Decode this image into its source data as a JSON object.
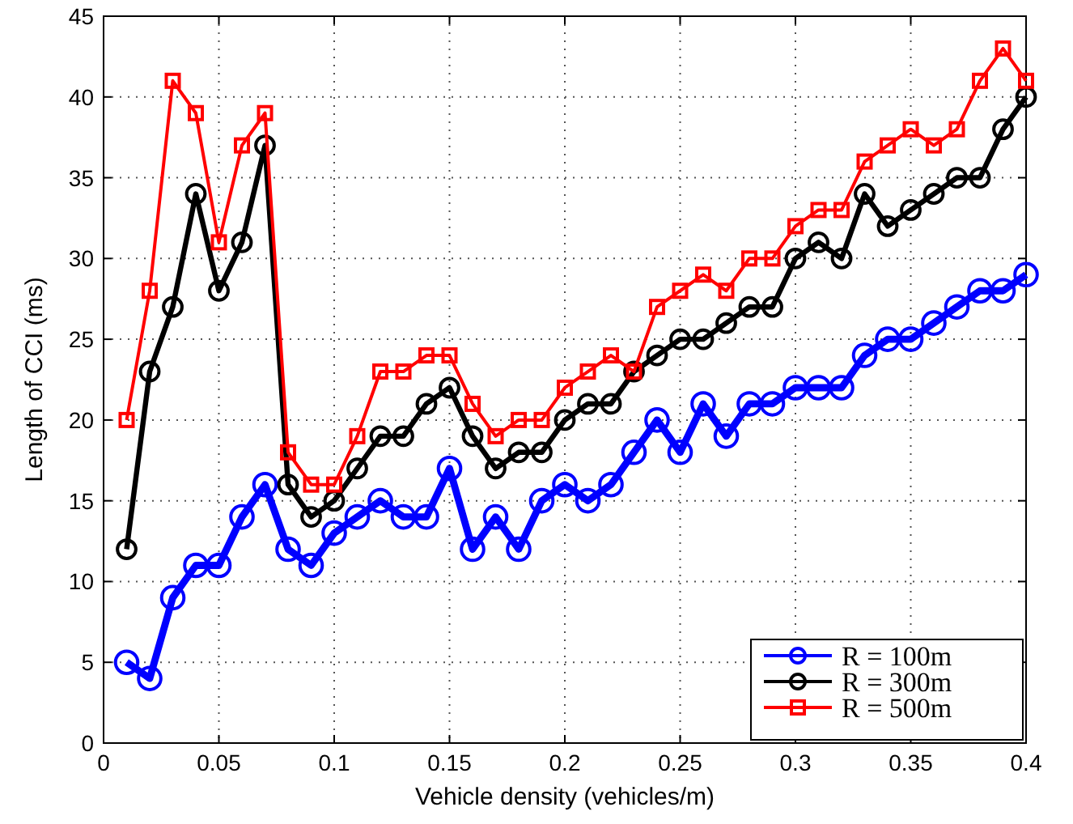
{
  "chart_data": {
    "type": "line",
    "xlabel": "Vehicle density (vehicles/m)",
    "ylabel": "Length of CCI (ms)",
    "x": [
      0.01,
      0.02,
      0.03,
      0.04,
      0.05,
      0.06,
      0.07,
      0.08,
      0.09,
      0.1,
      0.11,
      0.12,
      0.13,
      0.14,
      0.15,
      0.16,
      0.17,
      0.18,
      0.19,
      0.2,
      0.21,
      0.22,
      0.23,
      0.24,
      0.25,
      0.26,
      0.27,
      0.28,
      0.29,
      0.3,
      0.31,
      0.32,
      0.33,
      0.34,
      0.35,
      0.36,
      0.37,
      0.38,
      0.39,
      0.4
    ],
    "series": [
      {
        "name": "R = 100m",
        "color": "#0000ff",
        "marker": "circle",
        "values": [
          5,
          4,
          9,
          11,
          11,
          14,
          16,
          12,
          11,
          13,
          14,
          15,
          14,
          14,
          17,
          12,
          14,
          12,
          15,
          16,
          15,
          16,
          18,
          20,
          18,
          21,
          19,
          21,
          21,
          22,
          22,
          22,
          24,
          25,
          25,
          26,
          27,
          28,
          28,
          29
        ]
      },
      {
        "name": "R = 300m",
        "color": "#000000",
        "marker": "circle",
        "values": [
          12,
          23,
          27,
          34,
          28,
          31,
          37,
          16,
          14,
          15,
          17,
          19,
          19,
          21,
          22,
          19,
          17,
          18,
          18,
          20,
          21,
          21,
          23,
          24,
          25,
          25,
          26,
          27,
          27,
          30,
          31,
          30,
          34,
          32,
          33,
          34,
          35,
          35,
          38,
          40
        ]
      },
      {
        "name": "R = 500m",
        "color": "#ff0000",
        "marker": "square",
        "values": [
          20,
          28,
          41,
          39,
          31,
          37,
          39,
          18,
          16,
          16,
          19,
          23,
          23,
          24,
          24,
          21,
          19,
          20,
          20,
          22,
          23,
          24,
          23,
          27,
          28,
          29,
          28,
          30,
          30,
          32,
          33,
          33,
          36,
          37,
          38,
          37,
          38,
          41,
          43,
          41
        ]
      }
    ],
    "xlim": [
      0,
      0.4
    ],
    "xticks": [
      0,
      0.05,
      0.1,
      0.15,
      0.2,
      0.25,
      0.3,
      0.35,
      0.4
    ],
    "ylim": [
      0,
      45
    ],
    "yticks": [
      0,
      5,
      10,
      15,
      20,
      25,
      30,
      35,
      40,
      45
    ],
    "grid": true,
    "legend": "bottom right",
    "line_style": "solid"
  }
}
